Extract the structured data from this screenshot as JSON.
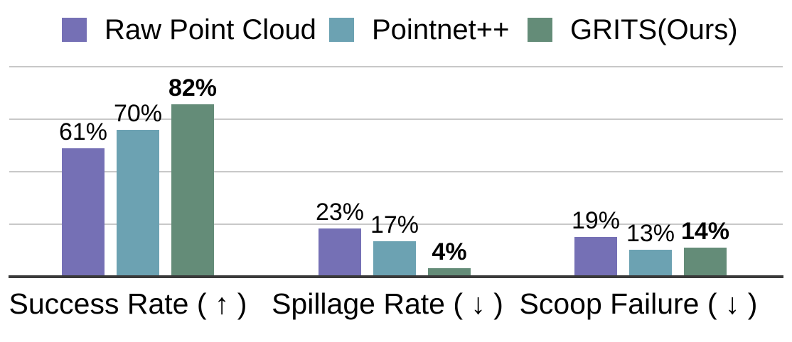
{
  "chart_data": {
    "type": "bar",
    "categories": [
      "Success Rate ( ↑ )",
      "Spillage Rate ( ↓ )",
      "Scoop Failure ( ↓ )"
    ],
    "series": [
      {
        "name": "Raw Point Cloud",
        "color": "#7570b5",
        "values": [
          61,
          23,
          19
        ],
        "bold_labels": false
      },
      {
        "name": "Pointnet++",
        "color": "#6ca2b2",
        "values": [
          70,
          17,
          13
        ],
        "bold_labels": false
      },
      {
        "name": "GRITS(Ours)",
        "color": "#648c78",
        "values": [
          82,
          4,
          14
        ],
        "bold_labels": true
      }
    ],
    "value_suffix": "%",
    "ylim": [
      0,
      100
    ],
    "gridlines": [
      25,
      50,
      75,
      100
    ],
    "grid": true,
    "legend_position": "top",
    "colors": {
      "gridline": "#c8c8c8",
      "axis_line": "#3a3a3a",
      "text": "#000000",
      "background": "#ffffff"
    }
  }
}
